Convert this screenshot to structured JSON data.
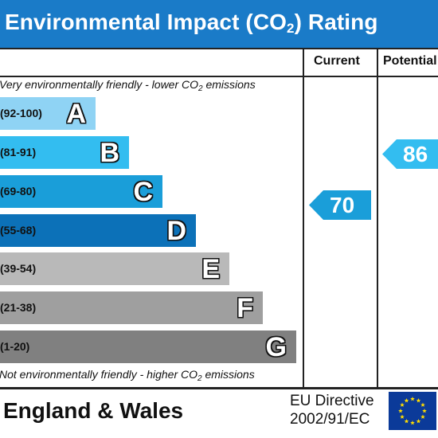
{
  "header": {
    "title_prefix": "Environmental Impact (CO",
    "title_sub": "2",
    "title_suffix": ") Rating"
  },
  "columns": {
    "current_label": "Current",
    "potential_label": "Potential"
  },
  "notes": {
    "top_prefix": "Very environmentally friendly - lower CO",
    "top_sub": "2",
    "top_suffix": " emissions",
    "bottom_prefix": "Not environmentally friendly - higher CO",
    "bottom_sub": "2",
    "bottom_suffix": " emissions"
  },
  "bands": [
    {
      "letter": "A",
      "range": "(92-100)",
      "color": "#8fd3f4"
    },
    {
      "letter": "B",
      "range": "(81-91)",
      "color": "#33bdf0"
    },
    {
      "letter": "C",
      "range": "(69-80)",
      "color": "#1a9ed9"
    },
    {
      "letter": "D",
      "range": "(55-68)",
      "color": "#0c71b8"
    },
    {
      "letter": "E",
      "range": "(39-54)",
      "color": "#b9b9b9"
    },
    {
      "letter": "F",
      "range": "(21-38)",
      "color": "#9f9f9f"
    },
    {
      "letter": "G",
      "range": "(1-20)",
      "color": "#808080"
    }
  ],
  "ratings": {
    "current": {
      "value": "70",
      "band": "C",
      "color": "#1a9ed9"
    },
    "potential": {
      "value": "86",
      "band": "B",
      "color": "#33bdf0"
    }
  },
  "footer": {
    "region": "England & Wales",
    "directive_line1": "EU Directive",
    "directive_line2": "2002/91/EC",
    "flag": "eu-flag-icon"
  }
}
